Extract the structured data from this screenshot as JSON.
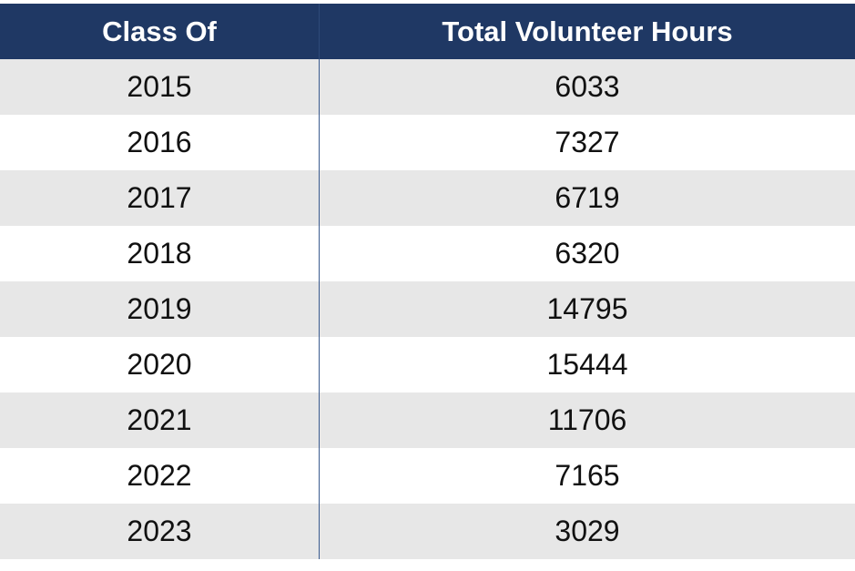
{
  "chart_data": {
    "type": "table",
    "columns": [
      "Class Of",
      "Total Volunteer Hours"
    ],
    "rows": [
      [
        "2015",
        "6033"
      ],
      [
        "2016",
        "7327"
      ],
      [
        "2017",
        "6719"
      ],
      [
        "2018",
        "6320"
      ],
      [
        "2019",
        "14795"
      ],
      [
        "2020",
        "15444"
      ],
      [
        "2021",
        "11706"
      ],
      [
        "2022",
        "7165"
      ],
      [
        "2023",
        "3029"
      ]
    ]
  },
  "colors": {
    "header_bg": "#1f3864",
    "stripe": "#e7e7e7",
    "divider": "#3b5b8f"
  }
}
